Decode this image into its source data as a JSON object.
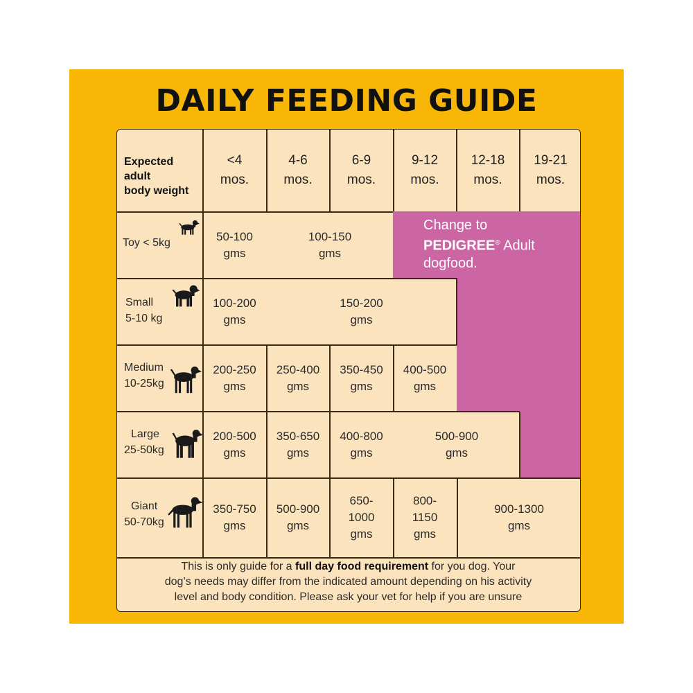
{
  "title": "DAILY FEEDING GUIDE",
  "header": {
    "label": "Expected adult body weight",
    "label_lines": [
      "Expected",
      "adult",
      "body weight"
    ],
    "ages": [
      {
        "top": "<4",
        "bottom": "mos."
      },
      {
        "top": "4-6",
        "bottom": "mos."
      },
      {
        "top": "6-9",
        "bottom": "mos."
      },
      {
        "top": "9-12",
        "bottom": "mos."
      },
      {
        "top": "12-18",
        "bottom": "mos."
      },
      {
        "top": "19-21",
        "bottom": "mos."
      }
    ]
  },
  "rows": [
    {
      "label_lines": [
        "Toy < 5kg"
      ],
      "icon": "dog-toy-icon",
      "cells": [
        {
          "lines": [
            "50-100",
            "gms"
          ]
        },
        {
          "lines": [
            "100-150",
            "gms"
          ]
        }
      ]
    },
    {
      "label_lines": [
        "Small",
        "5-10 kg"
      ],
      "icon": "dog-small-icon",
      "cells": [
        {
          "lines": [
            "100-200",
            "gms"
          ]
        },
        {
          "lines": [
            "150-200",
            "gms"
          ]
        }
      ]
    },
    {
      "label_lines": [
        "Medium",
        "10-25kg"
      ],
      "icon": "dog-medium-icon",
      "cells": [
        {
          "lines": [
            "200-250",
            "gms"
          ]
        },
        {
          "lines": [
            "250-400",
            "gms"
          ]
        },
        {
          "lines": [
            "350-450",
            "gms"
          ]
        },
        {
          "lines": [
            "400-500",
            "gms"
          ]
        }
      ]
    },
    {
      "label_lines": [
        "Large",
        "25-50kg"
      ],
      "icon": "dog-large-icon",
      "cells": [
        {
          "lines": [
            "200-500",
            "gms"
          ]
        },
        {
          "lines": [
            "350-650",
            "gms"
          ]
        },
        {
          "lines": [
            "400-800",
            "gms"
          ]
        },
        {
          "lines": [
            "500-900",
            "gms"
          ]
        }
      ]
    },
    {
      "label_lines": [
        "Giant",
        "50-70kg"
      ],
      "icon": "dog-giant-icon",
      "cells": [
        {
          "lines": [
            "350-750",
            "gms"
          ]
        },
        {
          "lines": [
            "500-900",
            "gms"
          ]
        },
        {
          "lines": [
            "650-",
            "1000",
            "gms"
          ]
        },
        {
          "lines": [
            "800-",
            "1150",
            "gms"
          ]
        },
        {
          "lines": [
            "900-1300",
            "gms"
          ]
        }
      ]
    }
  ],
  "change_note": {
    "line1": "Change to",
    "brand": "PEDIGREE",
    "reg": "®",
    "brand_rest": " Adult",
    "line3": "dogfood."
  },
  "footer": {
    "part1": "This is only guide for a ",
    "bold": "full day food requirement",
    "part2": " for you dog. Your",
    "line2": "dog’s needs may differ from the indicated amount depending on his activity",
    "line3": "level and body condition. Please ask your vet for help if you are unsure"
  },
  "colors": {
    "background": "#f8b706",
    "table": "#fbe3bd",
    "highlight": "#cc65a4",
    "line": "#3a2a10"
  }
}
